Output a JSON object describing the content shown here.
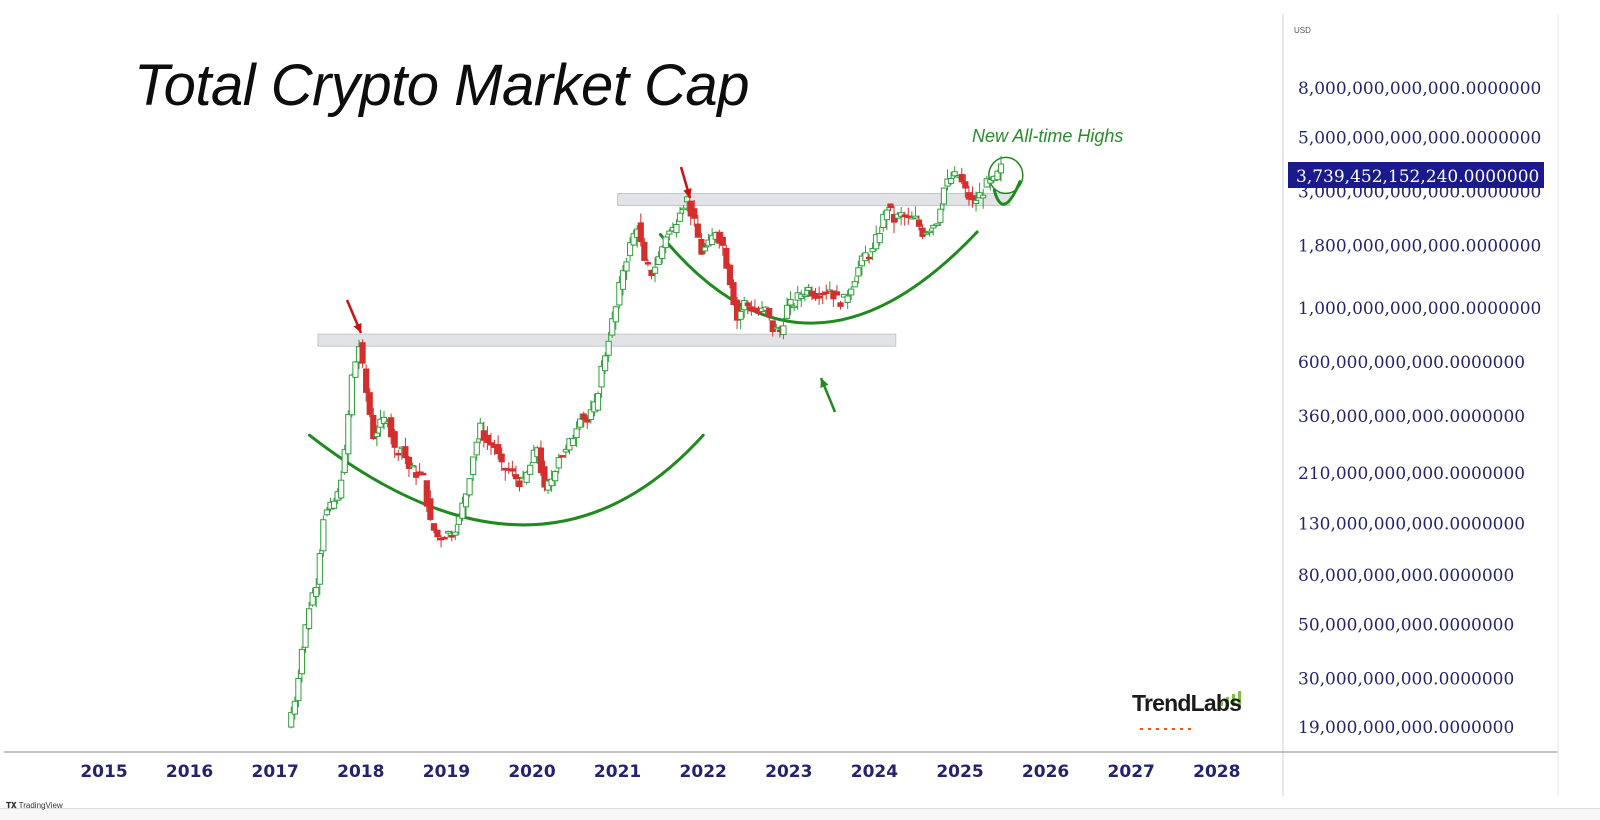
{
  "chart_data": {
    "type": "candlestick",
    "title": "Total Crypto Market Cap",
    "currency": "USD",
    "y_scale": "log",
    "ylim": [
      17000000000,
      11000000000000
    ],
    "x_range": [
      "2015-01-01",
      "2028-12-31"
    ],
    "x_tick_labels": [
      "2015",
      "2016",
      "2017",
      "2018",
      "2019",
      "2020",
      "2021",
      "2022",
      "2023",
      "2024",
      "2025",
      "2026",
      "2027",
      "2028"
    ],
    "y_tick_labels": [
      {
        "value": 8000000000000,
        "label": "8,000,000,000,000.0000000"
      },
      {
        "value": 5000000000000,
        "label": "5,000,000,000,000.0000000"
      },
      {
        "value": 3000000000000,
        "label": "3,000,000,000,000.0000000"
      },
      {
        "value": 1800000000000,
        "label": "1,800,000,000,000.0000000"
      },
      {
        "value": 1000000000000,
        "label": "1,000,000,000,000.0000000"
      },
      {
        "value": 600000000000,
        "label": "600,000,000,000.0000000"
      },
      {
        "value": 360000000000,
        "label": "360,000,000,000.0000000"
      },
      {
        "value": 210000000000,
        "label": "210,000,000,000.0000000"
      },
      {
        "value": 130000000000,
        "label": "130,000,000,000.0000000"
      },
      {
        "value": 80000000000,
        "label": "80,000,000,000.0000000"
      },
      {
        "value": 50000000000,
        "label": "50,000,000,000.0000000"
      },
      {
        "value": 30000000000,
        "label": "30,000,000,000.0000000"
      },
      {
        "value": 19000000000,
        "label": "19,000,000,000.0000000"
      }
    ],
    "last_price": {
      "value": 3739452152240,
      "label": "3,739,452,152,240.0000000"
    },
    "candles_weekly_sampled_close": [
      [
        "2017-03",
        19000000000.0
      ],
      [
        "2017-04",
        25000000000.0
      ],
      [
        "2017-05",
        40000000000.0
      ],
      [
        "2017-06",
        60000000000.0
      ],
      [
        "2017-07",
        75000000000.0
      ],
      [
        "2017-08",
        140000000000.0
      ],
      [
        "2017-09",
        150000000000.0
      ],
      [
        "2017-10",
        170000000000.0
      ],
      [
        "2017-11",
        250000000000.0
      ],
      [
        "2017-12",
        520000000000.0
      ],
      [
        "2018-01",
        700000000000.0
      ],
      [
        "2018-02",
        450000000000.0
      ],
      [
        "2018-03",
        300000000000.0
      ],
      [
        "2018-04",
        330000000000.0
      ],
      [
        "2018-05",
        360000000000.0
      ],
      [
        "2018-06",
        260000000000.0
      ],
      [
        "2018-07",
        270000000000.0
      ],
      [
        "2018-08",
        220000000000.0
      ],
      [
        "2018-09",
        210000000000.0
      ],
      [
        "2018-10",
        200000000000.0
      ],
      [
        "2018-11",
        130000000000.0
      ],
      [
        "2018-12",
        115000000000.0
      ],
      [
        "2019-01",
        118000000000.0
      ],
      [
        "2019-02",
        120000000000.0
      ],
      [
        "2019-03",
        135000000000.0
      ],
      [
        "2019-04",
        175000000000.0
      ],
      [
        "2019-05",
        250000000000.0
      ],
      [
        "2019-06",
        320000000000.0
      ],
      [
        "2019-07",
        280000000000.0
      ],
      [
        "2019-08",
        270000000000.0
      ],
      [
        "2019-09",
        220000000000.0
      ],
      [
        "2019-10",
        215000000000.0
      ],
      [
        "2019-11",
        200000000000.0
      ],
      [
        "2019-12",
        190000000000.0
      ],
      [
        "2020-01",
        225000000000.0
      ],
      [
        "2020-02",
        270000000000.0
      ],
      [
        "2020-03",
        175000000000.0
      ],
      [
        "2020-04",
        200000000000.0
      ],
      [
        "2020-05",
        250000000000.0
      ],
      [
        "2020-06",
        255000000000.0
      ],
      [
        "2020-07",
        300000000000.0
      ],
      [
        "2020-08",
        370000000000.0
      ],
      [
        "2020-09",
        340000000000.0
      ],
      [
        "2020-10",
        390000000000.0
      ],
      [
        "2020-11",
        560000000000.0
      ],
      [
        "2020-12",
        760000000000.0
      ],
      [
        "2021-01",
        1000000000000.0
      ],
      [
        "2021-02",
        1450000000000.0
      ],
      [
        "2021-03",
        1800000000000.0
      ],
      [
        "2021-04",
        2200000000000.0
      ],
      [
        "2021-05",
        1500000000000.0
      ],
      [
        "2021-06",
        1400000000000.0
      ],
      [
        "2021-07",
        1600000000000.0
      ],
      [
        "2021-08",
        2000000000000.0
      ],
      [
        "2021-09",
        2100000000000.0
      ],
      [
        "2021-10",
        2600000000000.0
      ],
      [
        "2021-11",
        2800000000000.0
      ],
      [
        "2021-12",
        2200000000000.0
      ],
      [
        "2022-01",
        1700000000000.0
      ],
      [
        "2022-02",
        1800000000000.0
      ],
      [
        "2022-03",
        2100000000000.0
      ],
      [
        "2022-04",
        1800000000000.0
      ],
      [
        "2022-05",
        1300000000000.0
      ],
      [
        "2022-06",
        900000000000.0
      ],
      [
        "2022-07",
        1050000000000.0
      ],
      [
        "2022-08",
        1000000000000.0
      ],
      [
        "2022-09",
        950000000000.0
      ],
      [
        "2022-10",
        980000000000.0
      ],
      [
        "2022-11",
        820000000000.0
      ],
      [
        "2022-12",
        800000000000.0
      ],
      [
        "2023-01",
        1000000000000.0
      ],
      [
        "2023-02",
        1050000000000.0
      ],
      [
        "2023-03",
        1150000000000.0
      ],
      [
        "2023-04",
        1200000000000.0
      ],
      [
        "2023-05",
        1150000000000.0
      ],
      [
        "2023-06",
        1180000000000.0
      ],
      [
        "2023-07",
        1200000000000.0
      ],
      [
        "2023-08",
        1080000000000.0
      ],
      [
        "2023-09",
        1070000000000.0
      ],
      [
        "2023-10",
        1250000000000.0
      ],
      [
        "2023-11",
        1450000000000.0
      ],
      [
        "2023-12",
        1650000000000.0
      ],
      [
        "2024-01",
        1700000000000.0
      ],
      [
        "2024-02",
        2100000000000.0
      ],
      [
        "2024-03",
        2600000000000.0
      ],
      [
        "2024-04",
        2300000000000.0
      ],
      [
        "2024-05",
        2400000000000.0
      ],
      [
        "2024-06",
        2300000000000.0
      ],
      [
        "2024-07",
        2300000000000.0
      ],
      [
        "2024-08",
        2050000000000.0
      ],
      [
        "2024-09",
        2150000000000.0
      ],
      [
        "2024-10",
        2300000000000.0
      ],
      [
        "2024-11",
        3100000000000.0
      ],
      [
        "2024-12",
        3400000000000.0
      ],
      [
        "2025-01",
        3500000000000.0
      ],
      [
        "2025-02",
        3000000000000.0
      ],
      [
        "2025-03",
        2700000000000.0
      ],
      [
        "2025-04",
        2900000000000.0
      ],
      [
        "2025-05",
        3200000000000.0
      ],
      [
        "2025-06",
        3300000000000.0
      ],
      [
        "2025-07",
        3739000000000.0
      ]
    ],
    "resistance_zones": [
      {
        "from": "2017-07",
        "to": "2024-03",
        "low": 720000000000.0,
        "high": 780000000000.0
      },
      {
        "from": "2021-01",
        "to": "2025-07",
        "low": 2700000000000.0,
        "high": 2950000000000.0
      }
    ],
    "annotations": [
      {
        "text": "New All-time Highs"
      }
    ],
    "brand": "TrendLabs",
    "footer": "TradingView"
  },
  "colors": {
    "up": "#2e9e3a",
    "down": "#d32f2f",
    "arc": "#1f8b1f",
    "arrow_red": "#cc1111",
    "arrow_green": "#1f8b1f",
    "badge": "#1a1a8c",
    "tick_text": "#23236e",
    "zone": "#d7d9df"
  },
  "icons": [
    "red-arrow-icon",
    "green-arrow-icon",
    "ath-circle-icon",
    "trendlabs-bars-icon",
    "tradingview-logo-icon"
  ]
}
